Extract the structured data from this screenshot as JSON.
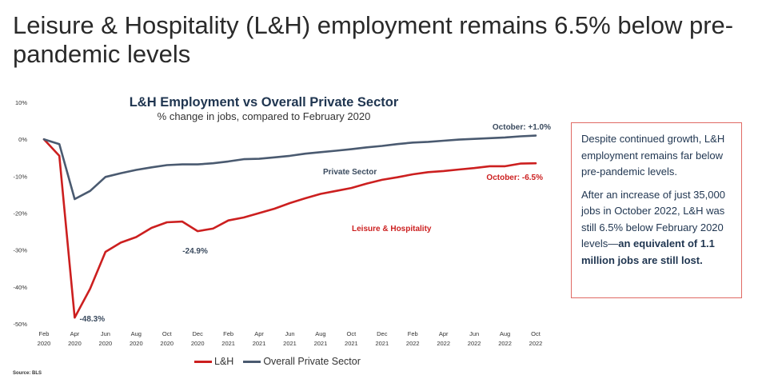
{
  "headline": "Leisure & Hospitality (L&H) employment remains 6.5% below pre-pandemic levels",
  "colors": {
    "lh": "#cc1f1f",
    "private": "#4a5a70",
    "title": "#1f3550",
    "note_border": "#e06a64"
  },
  "chart_data": {
    "type": "line",
    "title": "L&H Employment vs Overall Private Sector",
    "subtitle": "% change in jobs, compared to February 2020",
    "ylim": [
      -50,
      10
    ],
    "yticks": [
      10,
      0,
      -10,
      -20,
      -30,
      -40,
      -50
    ],
    "ytick_labels": [
      "10%",
      "0%",
      "-10%",
      "-20%",
      "-30%",
      "-40%",
      "-50%"
    ],
    "x_labels": [
      [
        "Feb",
        "2020"
      ],
      [
        "Apr",
        "2020"
      ],
      [
        "Jun",
        "2020"
      ],
      [
        "Aug",
        "2020"
      ],
      [
        "Oct",
        "2020"
      ],
      [
        "Dec",
        "2020"
      ],
      [
        "Feb",
        "2021"
      ],
      [
        "Apr",
        "2021"
      ],
      [
        "Jun",
        "2021"
      ],
      [
        "Aug",
        "2021"
      ],
      [
        "Oct",
        "2021"
      ],
      [
        "Dec",
        "2021"
      ],
      [
        "Feb",
        "2022"
      ],
      [
        "Apr",
        "2022"
      ],
      [
        "Jun",
        "2022"
      ],
      [
        "Aug",
        "2022"
      ],
      [
        "Oct",
        "2022"
      ]
    ],
    "x": [
      "Feb 2020",
      "Mar 2020",
      "Apr 2020",
      "May 2020",
      "Jun 2020",
      "Jul 2020",
      "Aug 2020",
      "Sep 2020",
      "Oct 2020",
      "Nov 2020",
      "Dec 2020",
      "Jan 2021",
      "Feb 2021",
      "Mar 2021",
      "Apr 2021",
      "May 2021",
      "Jun 2021",
      "Jul 2021",
      "Aug 2021",
      "Sep 2021",
      "Oct 2021",
      "Nov 2021",
      "Dec 2021",
      "Jan 2022",
      "Feb 2022",
      "Mar 2022",
      "Apr 2022",
      "May 2022",
      "Jun 2022",
      "Jul 2022",
      "Aug 2022",
      "Sep 2022",
      "Oct 2022"
    ],
    "grid": false,
    "legend_position": "bottom",
    "series": [
      {
        "name": "L&H",
        "values": [
          0,
          -4.5,
          -48.3,
          -40.5,
          -30.5,
          -28,
          -26.5,
          -24,
          -22.5,
          -22.3,
          -24.9,
          -24.2,
          -22,
          -21.2,
          -20,
          -18.8,
          -17.3,
          -16,
          -14.8,
          -14,
          -13.2,
          -12,
          -11,
          -10.3,
          -9.5,
          -8.9,
          -8.6,
          -8.2,
          -7.8,
          -7.3,
          -7.3,
          -6.6,
          -6.5
        ]
      },
      {
        "name": "Overall Private Sector",
        "values": [
          0,
          -1.3,
          -16.2,
          -14,
          -10.2,
          -9.2,
          -8.3,
          -7.6,
          -7,
          -6.8,
          -6.8,
          -6.5,
          -6,
          -5.4,
          -5.3,
          -4.9,
          -4.5,
          -3.9,
          -3.5,
          -3.1,
          -2.7,
          -2.2,
          -1.8,
          -1.3,
          -0.9,
          -0.7,
          -0.4,
          -0.1,
          0.1,
          0.3,
          0.5,
          0.8,
          1.0
        ]
      }
    ],
    "annotations": {
      "lh_min": "-48.3%",
      "lh_dec": "-24.9%",
      "lh_series_label": "Leisure & Hospitality",
      "lh_end": "October: -6.5%",
      "private_series_label": "Private Sector",
      "private_end": "October: +1.0%"
    }
  },
  "note": {
    "para1": "Despite continued growth, L&H employment remains far below pre-pandemic levels.",
    "para2_plain": "After an increase of just 35,000 jobs in October 2022, L&H was still 6.5%  below February 2020 levels—",
    "para2_bold": "an equivalent of 1.1 million jobs are still lost."
  },
  "source": "Source: BLS"
}
